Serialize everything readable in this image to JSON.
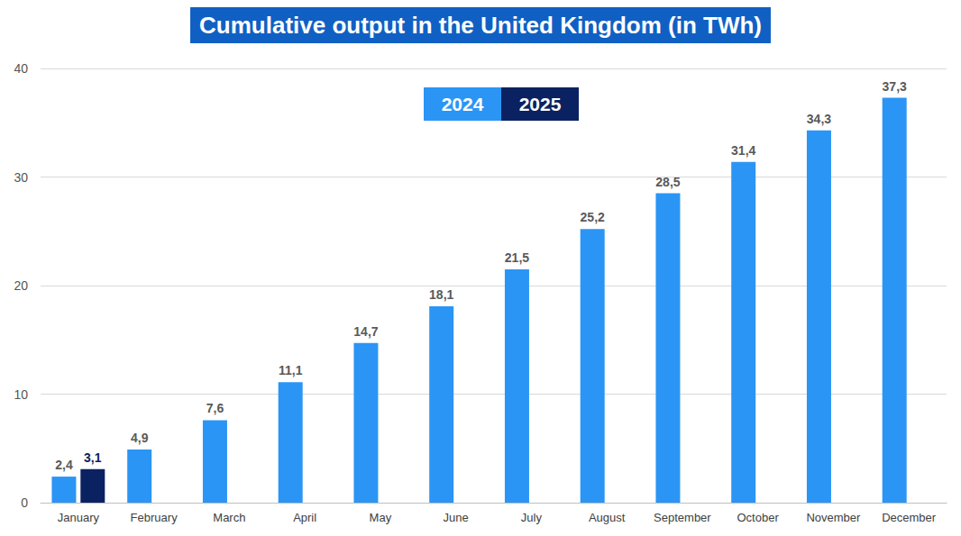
{
  "chart_data": {
    "type": "bar",
    "title": "Cumulative output in the United Kingdom (in TWh)",
    "categories": [
      "January",
      "February",
      "March",
      "April",
      "May",
      "June",
      "July",
      "August",
      "September",
      "October",
      "November",
      "December"
    ],
    "series": [
      {
        "name": "2024",
        "color": "#2b95f5",
        "values": [
          2.4,
          4.9,
          7.6,
          11.1,
          14.7,
          18.1,
          21.5,
          25.2,
          28.5,
          31.4,
          34.3,
          37.3
        ],
        "value_labels": [
          "2,4",
          "4,9",
          "7,6",
          "11,1",
          "14,7",
          "18,1",
          "21,5",
          "25,2",
          "28,5",
          "31,4",
          "34,3",
          "37,3"
        ]
      },
      {
        "name": "2025",
        "color": "#0b2262",
        "values": [
          3.1,
          null,
          null,
          null,
          null,
          null,
          null,
          null,
          null,
          null,
          null,
          null
        ],
        "value_labels": [
          "3,1",
          null,
          null,
          null,
          null,
          null,
          null,
          null,
          null,
          null,
          null,
          null
        ]
      }
    ],
    "ylim": [
      0,
      40
    ],
    "yticks": [
      0,
      10,
      20,
      30,
      40
    ],
    "grid": true,
    "legend": "top",
    "data_labels": true
  }
}
